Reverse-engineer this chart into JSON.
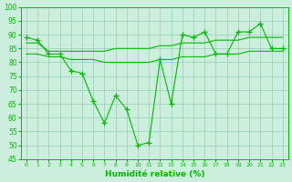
{
  "x": [
    0,
    1,
    2,
    3,
    4,
    5,
    6,
    7,
    8,
    9,
    10,
    11,
    12,
    13,
    14,
    15,
    16,
    17,
    18,
    19,
    20,
    21,
    22,
    23
  ],
  "line_main": [
    89,
    88,
    83,
    83,
    77,
    76,
    66,
    58,
    68,
    63,
    50,
    51,
    81,
    65,
    90,
    89,
    91,
    83,
    83,
    91,
    91,
    94,
    85,
    85
  ],
  "line_upper": [
    87,
    87,
    84,
    84,
    84,
    84,
    84,
    84,
    85,
    85,
    85,
    85,
    86,
    86,
    87,
    87,
    87,
    88,
    88,
    88,
    89,
    89,
    89,
    89
  ],
  "line_lower": [
    83,
    83,
    82,
    82,
    81,
    81,
    81,
    80,
    80,
    80,
    80,
    80,
    81,
    81,
    82,
    82,
    82,
    83,
    83,
    83,
    84,
    84,
    84,
    84
  ],
  "line_color": "#00bb00",
  "bg_color": "#cceedd",
  "grid_color": "#99ccbb",
  "xlabel": "Humidité relative (%)",
  "ylim": [
    45,
    100
  ],
  "xlim": [
    -0.5,
    23.5
  ],
  "ylabel_ticks": [
    45,
    50,
    55,
    60,
    65,
    70,
    75,
    80,
    85,
    90,
    95,
    100
  ]
}
